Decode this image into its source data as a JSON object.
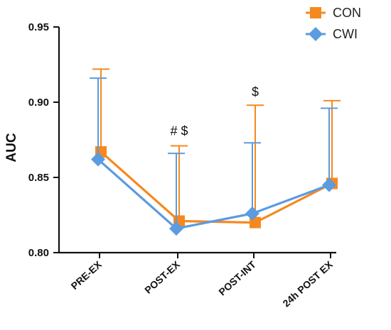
{
  "chart_data": {
    "type": "line",
    "categories": [
      "PRE-EX",
      "POST-EX",
      "POST-INT",
      "24h POST EX"
    ],
    "ylabel": "AUC",
    "xlabel": "",
    "ylim": [
      0.8,
      0.95
    ],
    "yticks": [
      "0.80",
      "0.85",
      "0.90",
      "0.95"
    ],
    "grid": false,
    "legend_position": "top-right",
    "series": [
      {
        "name": "CON",
        "color": "#F5891F",
        "marker": "square",
        "values": [
          0.867,
          0.821,
          0.82,
          0.846
        ],
        "error_upper": [
          0.922,
          0.871,
          0.898,
          0.901
        ]
      },
      {
        "name": "CWI",
        "color": "#5B9BE0",
        "marker": "diamond",
        "values": [
          0.862,
          0.816,
          0.826,
          0.845
        ],
        "error_upper": [
          0.916,
          0.866,
          0.873,
          0.896
        ]
      }
    ],
    "annotations": [
      {
        "category": "POST-EX",
        "text": "# $",
        "y": 0.878
      },
      {
        "category": "POST-INT",
        "text": "$",
        "y": 0.904
      }
    ]
  }
}
